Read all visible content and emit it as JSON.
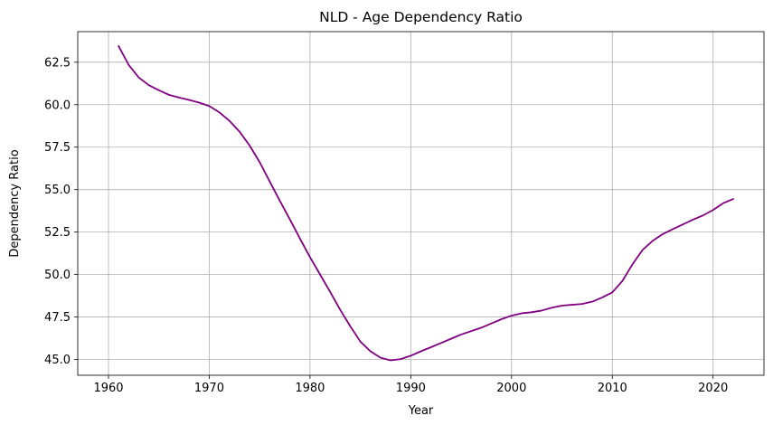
{
  "chart_data": {
    "type": "line",
    "title": "NLD - Age Dependency Ratio",
    "xlabel": "Year",
    "ylabel": "Dependency Ratio",
    "xlim": [
      1956.95,
      2025.05
    ],
    "ylim": [
      44.07,
      64.3
    ],
    "x_ticks": [
      1960,
      1970,
      1980,
      1990,
      2000,
      2010,
      2020
    ],
    "y_ticks": [
      45.0,
      47.5,
      50.0,
      52.5,
      55.0,
      57.5,
      60.0,
      62.5
    ],
    "y_tick_labels": [
      "45.0",
      "47.5",
      "50.0",
      "52.5",
      "55.0",
      "57.5",
      "60.0",
      "62.5"
    ],
    "grid": true,
    "series": [
      {
        "color": "#800080",
        "x": [
          1961,
          1962,
          1963,
          1964,
          1965,
          1966,
          1967,
          1968,
          1969,
          1970,
          1971,
          1972,
          1973,
          1974,
          1975,
          1976,
          1977,
          1978,
          1979,
          1980,
          1981,
          1982,
          1983,
          1984,
          1985,
          1986,
          1987,
          1988,
          1989,
          1990,
          1991,
          1992,
          1993,
          1994,
          1995,
          1996,
          1997,
          1998,
          1999,
          2000,
          2001,
          2002,
          2003,
          2004,
          2005,
          2006,
          2007,
          2008,
          2009,
          2010,
          2011,
          2012,
          2013,
          2014,
          2015,
          2016,
          2017,
          2018,
          2019,
          2020,
          2021,
          2022
        ],
        "values": [
          63.45,
          62.35,
          61.6,
          61.15,
          60.85,
          60.58,
          60.42,
          60.28,
          60.12,
          59.92,
          59.55,
          59.05,
          58.42,
          57.6,
          56.62,
          55.48,
          54.35,
          53.25,
          52.12,
          51.02,
          50.0,
          48.98,
          47.92,
          46.95,
          46.05,
          45.48,
          45.1,
          44.95,
          45.02,
          45.22,
          45.48,
          45.72,
          45.97,
          46.22,
          46.47,
          46.67,
          46.87,
          47.12,
          47.37,
          47.58,
          47.72,
          47.78,
          47.88,
          48.05,
          48.17,
          48.22,
          48.27,
          48.4,
          48.65,
          48.95,
          49.62,
          50.6,
          51.45,
          51.98,
          52.38,
          52.67,
          52.95,
          53.23,
          53.48,
          53.8,
          54.2,
          54.45
        ]
      }
    ]
  }
}
